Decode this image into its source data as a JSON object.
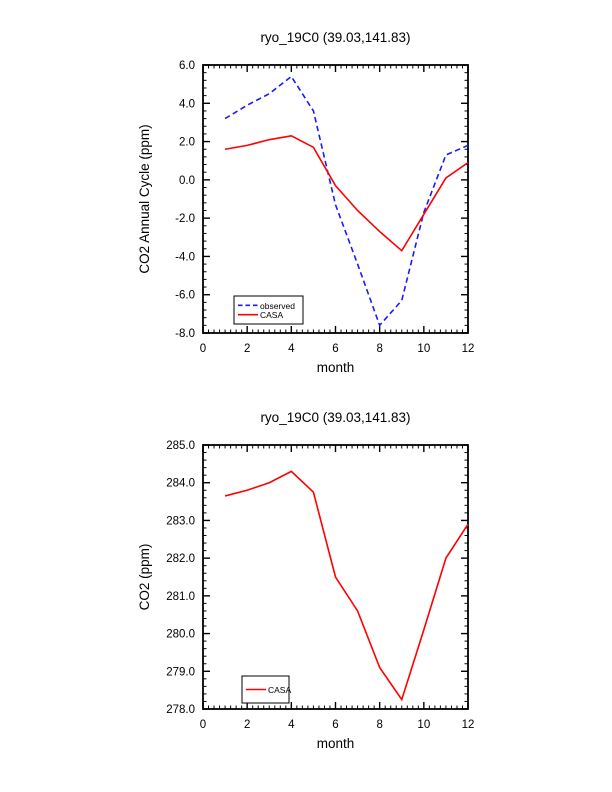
{
  "page": {
    "background": "#ffffff",
    "text_color": "#000000",
    "axis_color": "#000000"
  },
  "chart_data": [
    {
      "type": "line",
      "title": "ryo_19C0 (39.03,141.83)",
      "xlabel": "month",
      "ylabel": "CO2 Annual Cycle (ppm)",
      "xlim": [
        0,
        12
      ],
      "ylim": [
        -8,
        6
      ],
      "xticks": [
        0,
        2,
        4,
        6,
        8,
        10,
        12
      ],
      "xtick_labels": [
        "0",
        "2",
        "4",
        "6",
        "8",
        "10",
        "12"
      ],
      "yticks": [
        -8,
        -6,
        -4,
        -2,
        0,
        2,
        4,
        6
      ],
      "ytick_labels": [
        "-8.0",
        "-6.0",
        "-4.0",
        "-2.0",
        "0.0",
        "2.0",
        "4.0",
        "6.0"
      ],
      "x_minor_step": 0.25,
      "y_minor_step": 0.4,
      "grid": false,
      "legend_position": "lower-left",
      "x": [
        1,
        2,
        3,
        4,
        5,
        6,
        7,
        8,
        9,
        10,
        11,
        12
      ],
      "series": [
        {
          "name": "observed",
          "color": "#1a1aff",
          "dashed": true,
          "values": [
            3.2,
            3.9,
            4.5,
            5.4,
            3.6,
            -1.3,
            -4.4,
            -7.6,
            -6.3,
            -1.7,
            1.3,
            1.8
          ]
        },
        {
          "name": "CASA",
          "color": "#ff0000",
          "dashed": false,
          "values": [
            1.6,
            1.8,
            2.1,
            2.3,
            1.7,
            -0.3,
            -1.6,
            -2.7,
            -3.7,
            -1.8,
            0.1,
            0.9
          ]
        }
      ]
    },
    {
      "type": "line",
      "title": "ryo_19C0 (39.03,141.83)",
      "xlabel": "month",
      "ylabel": "CO2 (ppm)",
      "xlim": [
        0,
        12
      ],
      "ylim": [
        278,
        285
      ],
      "xticks": [
        0,
        2,
        4,
        6,
        8,
        10,
        12
      ],
      "xtick_labels": [
        "0",
        "2",
        "4",
        "6",
        "8",
        "10",
        "12"
      ],
      "yticks": [
        278,
        279,
        280,
        281,
        282,
        283,
        284,
        285
      ],
      "ytick_labels": [
        "278.0",
        "279.0",
        "280.0",
        "281.0",
        "282.0",
        "283.0",
        "284.0",
        "285.0"
      ],
      "x_minor_step": 0.25,
      "y_minor_step": 0.2,
      "grid": false,
      "legend_position": "lower-left",
      "x": [
        1,
        2,
        3,
        4,
        5,
        6,
        7,
        8,
        9,
        10,
        11,
        12
      ],
      "series": [
        {
          "name": "CASA",
          "color": "#ff0000",
          "dashed": false,
          "values": [
            283.65,
            283.8,
            284.0,
            284.3,
            283.75,
            281.5,
            280.6,
            279.1,
            278.25,
            280.1,
            282.0,
            282.9
          ]
        }
      ]
    }
  ]
}
